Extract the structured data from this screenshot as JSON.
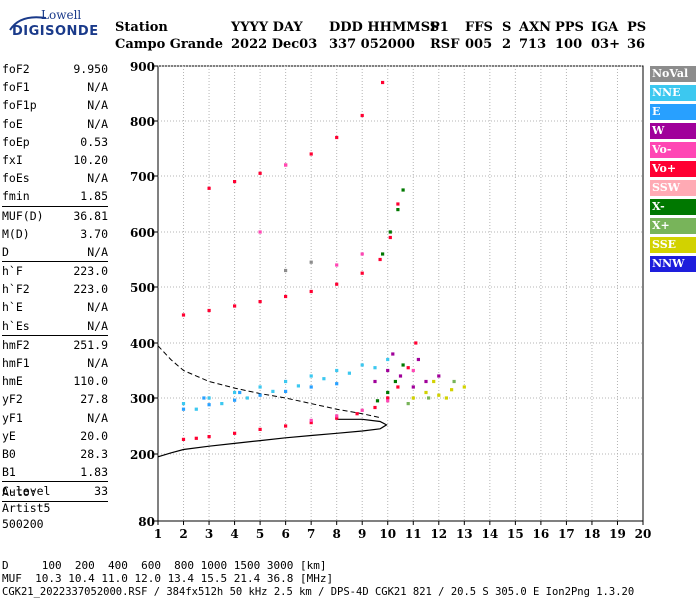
{
  "logo": {
    "line1": "Lowell",
    "line2": "DIGISONDE"
  },
  "header": {
    "labels": [
      "Station",
      "YYYY DAY",
      "DDD HHMMSS",
      "P1",
      "FFS",
      "S",
      "AXN",
      "PPS",
      "IGA",
      "PS"
    ],
    "station": "Campo Grande",
    "values": [
      "2022 Dec03",
      "337 052000",
      "RSF",
      "005",
      "2",
      "713",
      "100",
      "03+",
      "36"
    ]
  },
  "params": {
    "g1": [
      [
        "foF2",
        "9.950"
      ],
      [
        "foF1",
        "N/A"
      ],
      [
        "foF1p",
        "N/A"
      ],
      [
        "foE",
        "N/A"
      ],
      [
        "foEp",
        "0.53"
      ],
      [
        "fxI",
        "10.20"
      ],
      [
        "foEs",
        "N/A"
      ],
      [
        "fmin",
        "1.85"
      ]
    ],
    "g2": [
      [
        "MUF(D)",
        "36.81"
      ],
      [
        "M(D)",
        "3.70"
      ],
      [
        "D",
        "N/A"
      ]
    ],
    "g3": [
      [
        "h`F",
        "223.0"
      ],
      [
        "h`F2",
        "223.0"
      ],
      [
        "h`E",
        "N/A"
      ],
      [
        "h`Es",
        "N/A"
      ]
    ],
    "g4": [
      [
        "hmF2",
        "251.9"
      ],
      [
        "hmF1",
        "N/A"
      ],
      [
        "hmE",
        "110.0"
      ],
      [
        "yF2",
        "27.8"
      ],
      [
        "yF1",
        "N/A"
      ],
      [
        "yE",
        "20.0"
      ],
      [
        "B0",
        "28.3"
      ],
      [
        "B1",
        "1.83"
      ]
    ],
    "g5": [
      [
        "C-level",
        "33"
      ]
    ]
  },
  "auto": {
    "l1": "Auto:",
    "l2": "Artist5",
    "l3": "500200"
  },
  "legend": [
    {
      "label": "NoVal",
      "color": "#8c8c8c"
    },
    {
      "label": "NNE",
      "color": "#3cc8f0"
    },
    {
      "label": "E",
      "color": "#28a0ff"
    },
    {
      "label": "W",
      "color": "#a0009a"
    },
    {
      "label": "Vo-",
      "color": "#ff46b4"
    },
    {
      "label": "Vo+",
      "color": "#ff0032"
    },
    {
      "label": "SSW",
      "color": "#ffaab4"
    },
    {
      "label": "X-",
      "color": "#007800"
    },
    {
      "label": "X+",
      "color": "#78b45a"
    },
    {
      "label": "SSE",
      "color": "#d2d200"
    },
    {
      "label": "NNW",
      "color": "#1e1edc"
    }
  ],
  "chart_data": {
    "type": "scatter",
    "xlim": [
      1,
      20
    ],
    "ylim": [
      80,
      900
    ],
    "xticks": [
      "1",
      "2",
      "3",
      "4",
      "5",
      "6",
      "7",
      "8",
      "9",
      "10",
      "11",
      "12",
      "13",
      "14",
      "15",
      "16",
      "17",
      "18",
      "19",
      "20"
    ],
    "yticks": [
      "80",
      "200",
      "300",
      "400",
      "500",
      "600",
      "700",
      "800",
      "900"
    ],
    "ytick_values": [
      80,
      200,
      300,
      400,
      500,
      600,
      700,
      800,
      900
    ],
    "grid": true,
    "series": [
      {
        "name": "Vo+",
        "color": "#ff0032",
        "points": [
          [
            2.0,
            226
          ],
          [
            2.5,
            228
          ],
          [
            3.0,
            231
          ],
          [
            4.0,
            237
          ],
          [
            5.0,
            244
          ],
          [
            6.0,
            250
          ],
          [
            7.0,
            256
          ],
          [
            8.0,
            264
          ],
          [
            8.8,
            272
          ],
          [
            9.5,
            283
          ],
          [
            10.0,
            300
          ],
          [
            10.4,
            320
          ],
          [
            10.8,
            355
          ],
          [
            11.1,
            400
          ],
          [
            2.0,
            450
          ],
          [
            3.0,
            458
          ],
          [
            4.0,
            466
          ],
          [
            5.0,
            474
          ],
          [
            6.0,
            483
          ],
          [
            7.0,
            492
          ],
          [
            8.0,
            505
          ],
          [
            9.0,
            525
          ],
          [
            9.7,
            550
          ],
          [
            10.1,
            590
          ],
          [
            10.4,
            650
          ],
          [
            3.0,
            678
          ],
          [
            4.0,
            690
          ],
          [
            5.0,
            705
          ],
          [
            6.0,
            720
          ],
          [
            7.0,
            740
          ],
          [
            8.0,
            770
          ],
          [
            9.0,
            810
          ],
          [
            9.8,
            870
          ]
        ]
      },
      {
        "name": "NNE",
        "color": "#3cc8f0",
        "points": [
          [
            2.0,
            290
          ],
          [
            3.0,
            300
          ],
          [
            4.0,
            310
          ],
          [
            5.0,
            320
          ],
          [
            6.0,
            330
          ],
          [
            7.0,
            340
          ],
          [
            8.0,
            350
          ],
          [
            9.0,
            360
          ],
          [
            10.0,
            370
          ],
          [
            2.5,
            280
          ],
          [
            3.5,
            290
          ],
          [
            4.5,
            300
          ],
          [
            5.5,
            312
          ],
          [
            6.5,
            322
          ],
          [
            7.5,
            335
          ],
          [
            8.5,
            345
          ],
          [
            9.5,
            355
          ]
        ]
      },
      {
        "name": "E",
        "color": "#28a0ff",
        "points": [
          [
            2.0,
            280
          ],
          [
            3.0,
            288
          ],
          [
            4.0,
            296
          ],
          [
            5.0,
            305
          ],
          [
            6.0,
            312
          ],
          [
            7.0,
            320
          ],
          [
            8.0,
            326
          ],
          [
            2.8,
            300
          ],
          [
            4.2,
            310
          ]
        ]
      },
      {
        "name": "W",
        "color": "#a0009a",
        "points": [
          [
            9.5,
            330
          ],
          [
            10.0,
            350
          ],
          [
            10.5,
            340
          ],
          [
            11.0,
            320
          ],
          [
            11.5,
            330
          ],
          [
            12.0,
            340
          ],
          [
            10.2,
            380
          ],
          [
            11.2,
            370
          ]
        ]
      },
      {
        "name": "X-",
        "color": "#007800",
        "points": [
          [
            9.6,
            295
          ],
          [
            10.0,
            310
          ],
          [
            10.3,
            330
          ],
          [
            10.6,
            360
          ],
          [
            9.8,
            560
          ],
          [
            10.1,
            600
          ],
          [
            10.4,
            640
          ],
          [
            10.6,
            675
          ]
        ]
      },
      {
        "name": "SSE",
        "color": "#d2d200",
        "points": [
          [
            11.0,
            300
          ],
          [
            11.5,
            310
          ],
          [
            12.0,
            305
          ],
          [
            12.5,
            315
          ],
          [
            13.0,
            320
          ],
          [
            11.8,
            330
          ],
          [
            12.3,
            300
          ]
        ]
      },
      {
        "name": "X+",
        "color": "#78b45a",
        "points": [
          [
            10.8,
            290
          ],
          [
            11.6,
            300
          ],
          [
            12.6,
            330
          ]
        ]
      },
      {
        "name": "Vo-",
        "color": "#ff46b4",
        "points": [
          [
            7.0,
            260
          ],
          [
            8.0,
            268
          ],
          [
            9.0,
            278
          ],
          [
            10.0,
            295
          ],
          [
            11.0,
            350
          ],
          [
            8.0,
            540
          ],
          [
            9.0,
            560
          ],
          [
            5.0,
            600
          ],
          [
            6.0,
            720
          ]
        ]
      },
      {
        "name": "NoVal",
        "color": "#8c8c8c",
        "points": [
          [
            6.0,
            530
          ],
          [
            7.0,
            545
          ]
        ]
      }
    ],
    "profile_solid": [
      [
        1.0,
        195
      ],
      [
        1.5,
        202
      ],
      [
        2.0,
        208
      ],
      [
        3.0,
        214
      ],
      [
        4.0,
        219
      ],
      [
        5.0,
        224
      ],
      [
        6.0,
        229
      ],
      [
        7.0,
        233
      ],
      [
        8.0,
        237
      ],
      [
        9.0,
        241
      ],
      [
        9.7,
        245
      ],
      [
        9.95,
        252
      ],
      [
        9.7,
        258
      ],
      [
        9.0,
        262
      ],
      [
        8.0,
        262
      ]
    ],
    "profile_dashed": [
      [
        1.0,
        395
      ],
      [
        1.5,
        370
      ],
      [
        2.0,
        350
      ],
      [
        3.0,
        330
      ],
      [
        4.0,
        318
      ],
      [
        5.0,
        308
      ],
      [
        6.0,
        300
      ],
      [
        7.0,
        290
      ],
      [
        8.0,
        280
      ],
      [
        9.0,
        272
      ],
      [
        9.7,
        265
      ]
    ]
  },
  "footer": {
    "d_row": "D     100  200  400  600  800 1000 1500 3000 [km]",
    "muf_row": "MUF  10.3 10.4 11.0 12.0 13.4 15.5 21.4 36.8 [MHz]",
    "info": "CGK21_2022337052000.RSF / 384fx512h 50 kHz 2.5 km / DPS-4D CGK21 821 / 20.5 S 305.0 E Ion2Png 1.3.20"
  }
}
